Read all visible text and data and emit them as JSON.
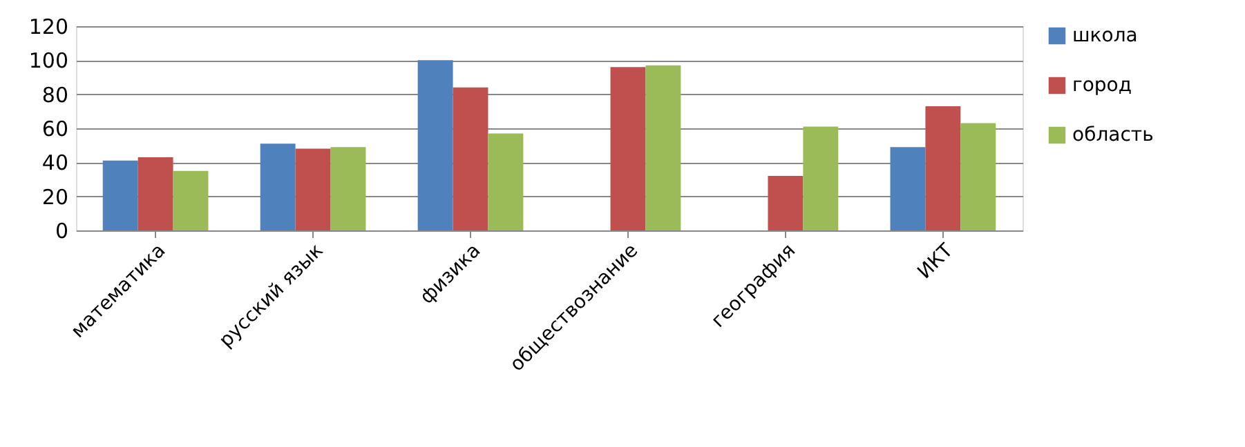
{
  "chart_data": {
    "type": "bar",
    "categories": [
      "математика",
      "русский язык",
      "физика",
      "обществознание",
      "география",
      "ИКТ"
    ],
    "series": [
      {
        "name": "школа",
        "color": "#4f81bd",
        "values": [
          41,
          51,
          100,
          null,
          null,
          49
        ]
      },
      {
        "name": "город",
        "color": "#c0504d",
        "values": [
          43,
          48,
          84,
          96,
          32,
          73
        ]
      },
      {
        "name": "область",
        "color": "#9bbb59",
        "values": [
          35,
          49,
          57,
          97,
          61,
          63
        ]
      }
    ],
    "ylim": [
      0,
      120
    ],
    "yticks": [
      0,
      20,
      40,
      60,
      80,
      100,
      120
    ],
    "grid": "y",
    "legend": "right"
  }
}
